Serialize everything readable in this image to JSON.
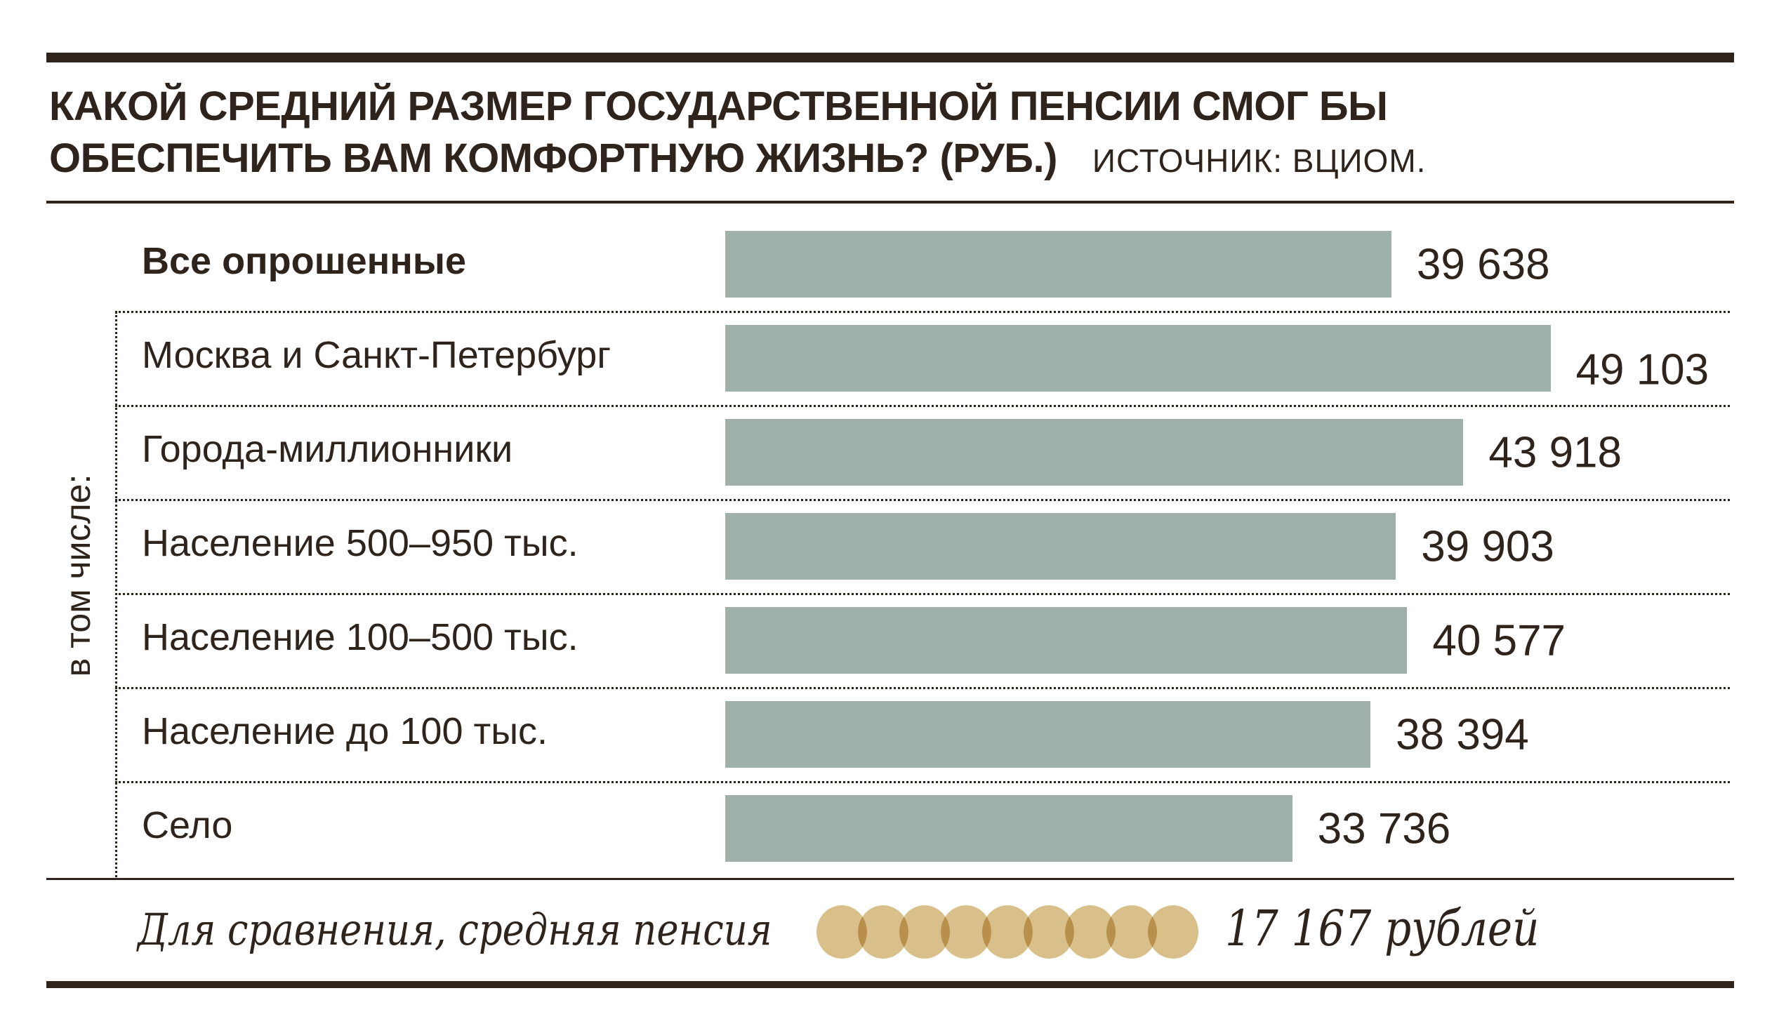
{
  "title_line1": "КАКОЙ СРЕДНИЙ РАЗМЕР ГОСУДАРСТВЕННОЙ ПЕНСИИ СМОГ БЫ",
  "title_line2": "ОБЕСПЕЧИТЬ ВАМ КОМФОРТНУЮ ЖИЗНЬ? (РУБ.)",
  "source": "ИСТОЧНИК: ВЦИОМ.",
  "group_label": "в том числе:",
  "colors": {
    "bar": "#9fb0a8",
    "ink": "#2e241c",
    "coin": "#d9c08a"
  },
  "chart_data": {
    "type": "bar",
    "orientation": "horizontal",
    "title": "КАКОЙ СРЕДНИЙ РАЗМЕР ГОСУДАРСТВЕННОЙ ПЕНСИИ СМОГ БЫ ОБЕСПЕЧИТЬ ВАМ КОМФОРТНУЮ ЖИЗНЬ? (РУБ.)",
    "categories": [
      "Все опрошенные",
      "Москва и Санкт-Петербург",
      "Города-миллионники",
      "Население 500–950 тыс.",
      "Население 100–500 тыс.",
      "Население до 100 тыс.",
      "Село"
    ],
    "values": [
      39638,
      49103,
      43918,
      39903,
      40577,
      38394,
      33736
    ],
    "value_labels": [
      "39 638",
      "49 103",
      "43 918",
      "39 903",
      "40 577",
      "38 394",
      "33 736"
    ],
    "xlim": [
      0,
      50000
    ],
    "grid": false
  },
  "footer": {
    "text": "Для сравнения, средняя пенсия",
    "value": "17 167 рублей",
    "coin_count": 9
  }
}
